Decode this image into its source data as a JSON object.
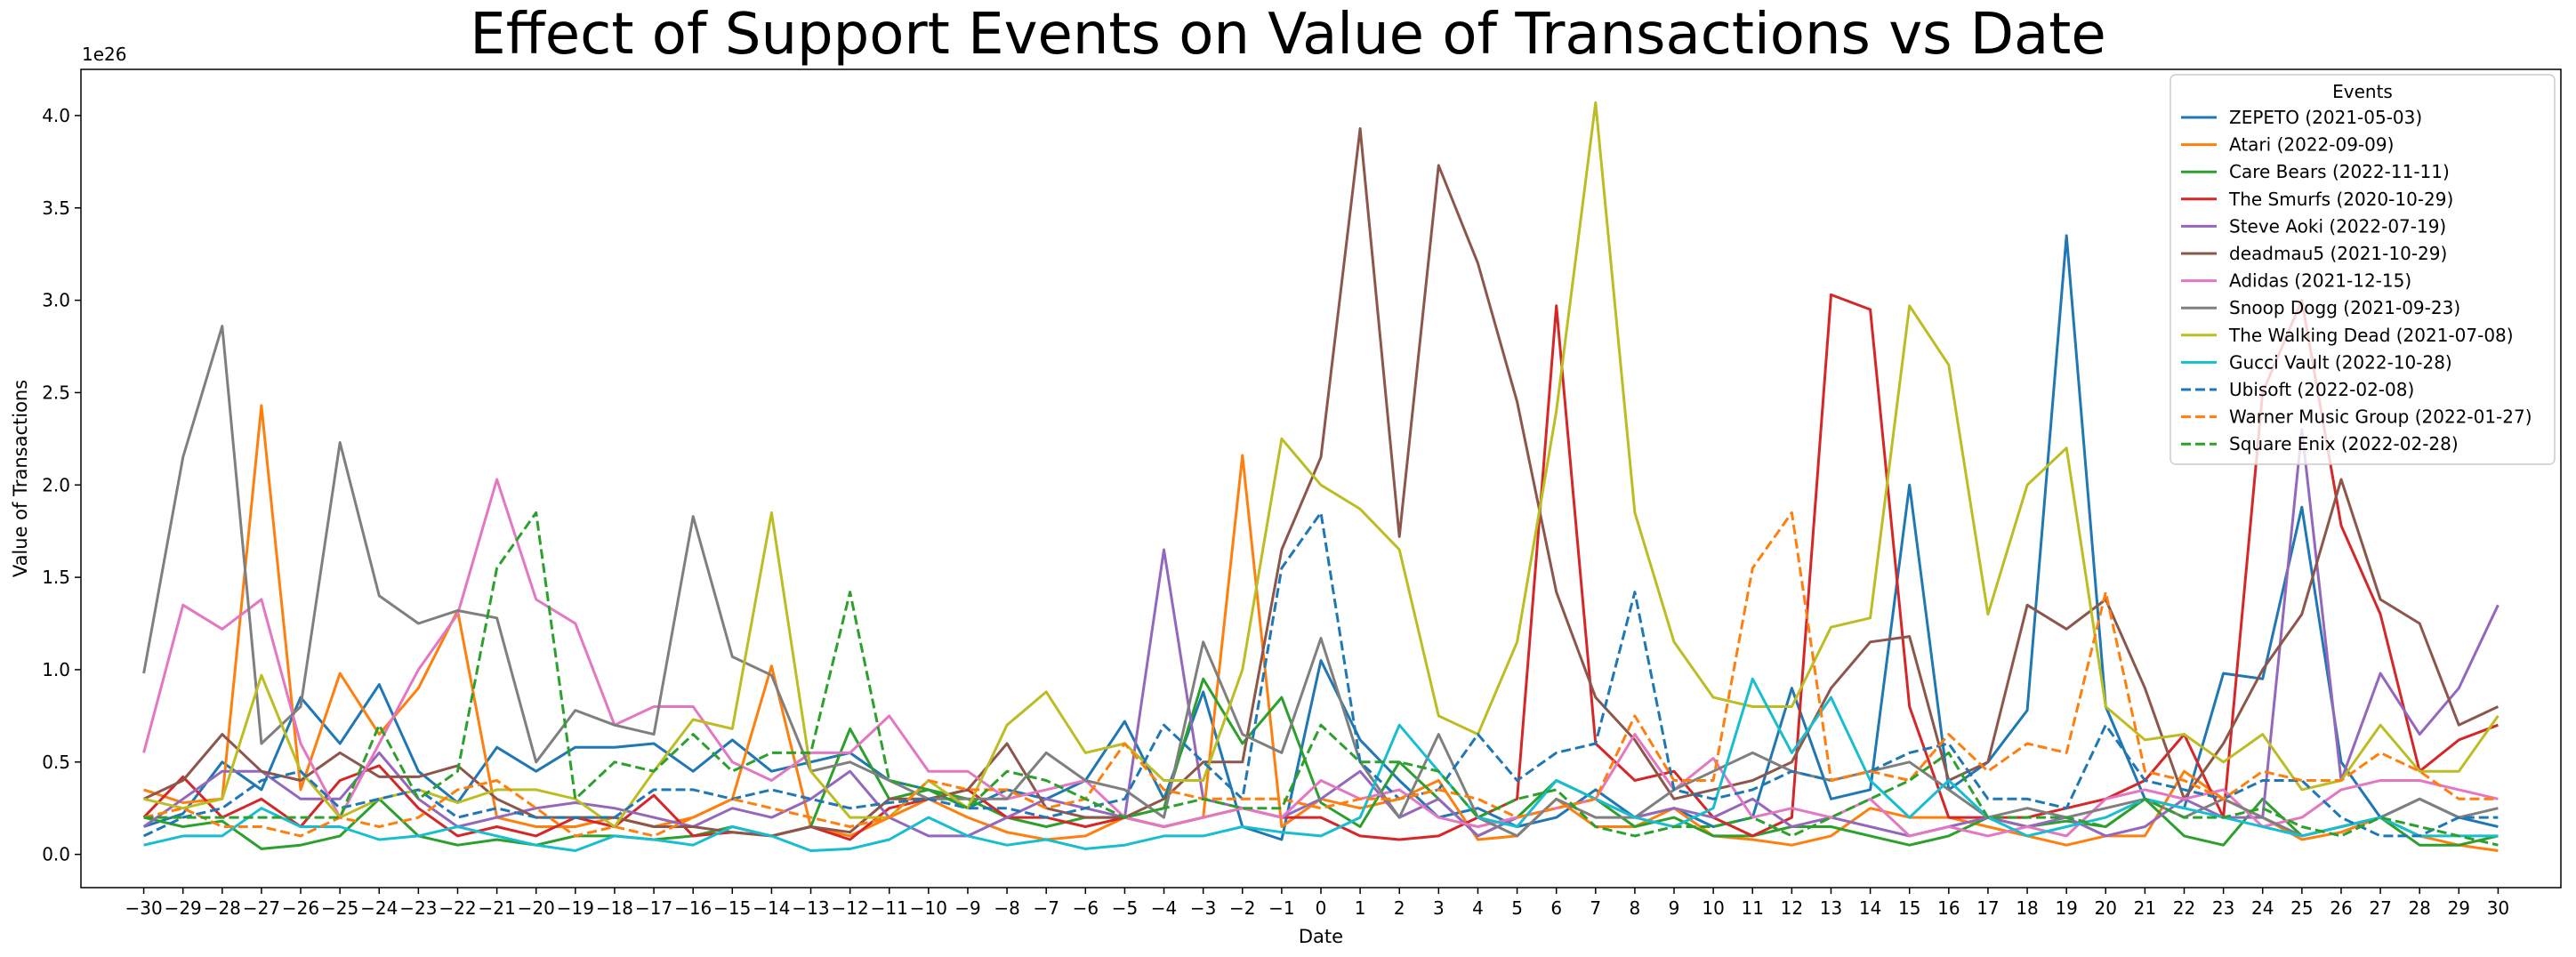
{
  "chart_data": {
    "type": "line",
    "title": "Effect of Support Events on Value of Transactions vs Date",
    "xlabel": "Date",
    "ylabel": "Value of Transactions",
    "y_offset_label": "1e26",
    "y_unit_scale": 1e+26,
    "ylim": [
      -0.18,
      4.25
    ],
    "y_ticks": [
      0.0,
      0.5,
      1.0,
      1.5,
      2.0,
      2.5,
      3.0,
      3.5,
      4.0
    ],
    "y_tick_labels": [
      "0.0",
      "0.5",
      "1.0",
      "1.5",
      "2.0",
      "2.5",
      "3.0",
      "3.5",
      "4.0"
    ],
    "x": [
      -30,
      -29,
      -28,
      -27,
      -26,
      -25,
      -24,
      -23,
      -22,
      -21,
      -20,
      -19,
      -18,
      -17,
      -16,
      -15,
      -14,
      -13,
      -12,
      -11,
      -10,
      -9,
      -8,
      -7,
      -6,
      -5,
      -4,
      -3,
      -2,
      -1,
      0,
      1,
      2,
      3,
      4,
      5,
      6,
      7,
      8,
      9,
      10,
      11,
      12,
      13,
      14,
      15,
      16,
      17,
      18,
      19,
      20,
      21,
      22,
      23,
      24,
      25,
      26,
      27,
      28,
      29,
      30
    ],
    "x_tick_labels": [
      "−30",
      "−29",
      "−28",
      "−27",
      "−26",
      "−25",
      "−24",
      "−23",
      "−22",
      "−21",
      "−20",
      "−19",
      "−18",
      "−17",
      "−16",
      "−15",
      "−14",
      "−13",
      "−12",
      "−11",
      "−10",
      "−9",
      "−8",
      "−7",
      "−6",
      "−5",
      "−4",
      "−3",
      "−2",
      "−1",
      "0",
      "1",
      "2",
      "3",
      "4",
      "5",
      "6",
      "7",
      "8",
      "9",
      "10",
      "11",
      "12",
      "13",
      "14",
      "15",
      "16",
      "17",
      "18",
      "19",
      "20",
      "21",
      "22",
      "23",
      "24",
      "25",
      "26",
      "27",
      "28",
      "29",
      "30"
    ],
    "legend_title": "Events",
    "legend_position": "top-right",
    "grid": false,
    "series": [
      {
        "name": "ZEPETO (2021-05-03)",
        "color": "#1f77b4",
        "dash": "solid",
        "values": [
          0.15,
          0.22,
          0.5,
          0.35,
          0.85,
          0.6,
          0.92,
          0.45,
          0.28,
          0.58,
          0.45,
          0.58,
          0.58,
          0.6,
          0.45,
          0.62,
          0.45,
          0.5,
          0.55,
          0.4,
          0.35,
          0.25,
          0.35,
          0.3,
          0.4,
          0.72,
          0.3,
          0.88,
          0.15,
          0.08,
          1.05,
          0.62,
          0.4,
          0.2,
          0.25,
          0.15,
          0.2,
          0.35,
          0.2,
          0.25,
          0.15,
          0.2,
          0.9,
          0.3,
          0.35,
          2.0,
          0.35,
          0.5,
          0.78,
          3.35,
          0.8,
          0.3,
          0.25,
          0.98,
          0.95,
          1.88,
          0.5,
          0.2,
          0.3,
          0.2,
          0.15
        ]
      },
      {
        "name": "Atari (2022-09-09)",
        "color": "#ff7f0e",
        "dash": "solid",
        "values": [
          0.35,
          0.28,
          0.3,
          2.43,
          0.35,
          0.98,
          0.65,
          0.9,
          1.32,
          0.2,
          0.15,
          0.15,
          0.2,
          0.15,
          0.2,
          0.3,
          1.02,
          0.15,
          0.1,
          0.2,
          0.3,
          0.2,
          0.12,
          0.08,
          0.1,
          0.2,
          0.15,
          0.2,
          2.16,
          0.15,
          0.3,
          0.25,
          0.3,
          0.4,
          0.08,
          0.1,
          0.3,
          0.15,
          0.15,
          0.25,
          0.1,
          0.08,
          0.05,
          0.1,
          0.25,
          0.2,
          0.2,
          0.15,
          0.1,
          0.05,
          0.1,
          0.1,
          0.45,
          0.3,
          0.2,
          0.08,
          0.12,
          0.2,
          0.1,
          0.05,
          0.02
        ]
      },
      {
        "name": "Care Bears (2022-11-11)",
        "color": "#2ca02c",
        "dash": "solid",
        "values": [
          0.2,
          0.15,
          0.18,
          0.03,
          0.05,
          0.1,
          0.3,
          0.1,
          0.05,
          0.08,
          0.05,
          0.1,
          0.1,
          0.08,
          0.1,
          0.15,
          0.1,
          0.15,
          0.68,
          0.3,
          0.35,
          0.3,
          0.2,
          0.15,
          0.2,
          0.2,
          0.25,
          0.95,
          0.6,
          0.85,
          0.28,
          0.15,
          0.5,
          0.3,
          0.1,
          0.2,
          0.4,
          0.3,
          0.15,
          0.2,
          0.1,
          0.1,
          0.15,
          0.15,
          0.1,
          0.05,
          0.1,
          0.2,
          0.15,
          0.18,
          0.15,
          0.3,
          0.1,
          0.05,
          0.3,
          0.1,
          0.15,
          0.2,
          0.05,
          0.05,
          0.1
        ]
      },
      {
        "name": "The Smurfs (2020-10-29)",
        "color": "#d62728",
        "dash": "solid",
        "values": [
          0.2,
          0.42,
          0.2,
          0.3,
          0.15,
          0.4,
          0.48,
          0.25,
          0.1,
          0.15,
          0.1,
          0.2,
          0.15,
          0.32,
          0.1,
          0.12,
          0.1,
          0.15,
          0.08,
          0.25,
          0.3,
          0.35,
          0.2,
          0.2,
          0.15,
          0.2,
          0.15,
          0.2,
          0.25,
          0.2,
          0.2,
          0.1,
          0.08,
          0.1,
          0.2,
          0.3,
          2.97,
          0.6,
          0.4,
          0.45,
          0.2,
          0.1,
          0.2,
          3.03,
          2.95,
          0.8,
          0.2,
          0.2,
          0.2,
          0.25,
          0.3,
          0.4,
          0.65,
          0.2,
          2.5,
          3.0,
          1.78,
          1.3,
          0.45,
          0.62,
          0.7
        ]
      },
      {
        "name": "Steve Aoki (2022-07-19)",
        "color": "#9467bd",
        "dash": "solid",
        "values": [
          0.15,
          0.3,
          0.45,
          0.45,
          0.3,
          0.3,
          0.55,
          0.3,
          0.15,
          0.2,
          0.25,
          0.28,
          0.25,
          0.2,
          0.15,
          0.25,
          0.2,
          0.3,
          0.45,
          0.2,
          0.1,
          0.1,
          0.2,
          0.3,
          0.25,
          0.2,
          1.65,
          0.3,
          0.25,
          0.2,
          0.3,
          0.45,
          0.2,
          0.3,
          0.1,
          0.2,
          0.25,
          0.3,
          0.2,
          0.25,
          0.2,
          0.3,
          0.15,
          0.2,
          0.15,
          0.1,
          0.15,
          0.2,
          0.15,
          0.2,
          0.1,
          0.15,
          0.3,
          0.2,
          0.2,
          2.3,
          0.4,
          0.98,
          0.65,
          0.9,
          1.35
        ]
      },
      {
        "name": "deadmau5 (2021-10-29)",
        "color": "#8c564b",
        "dash": "solid",
        "values": [
          0.3,
          0.4,
          0.65,
          0.45,
          0.4,
          0.55,
          0.42,
          0.42,
          0.48,
          0.3,
          0.2,
          0.2,
          0.2,
          0.15,
          0.15,
          0.12,
          0.1,
          0.15,
          0.12,
          0.3,
          0.3,
          0.35,
          0.6,
          0.25,
          0.2,
          0.2,
          0.3,
          0.5,
          0.5,
          1.65,
          2.15,
          3.93,
          1.72,
          3.73,
          3.2,
          2.45,
          1.42,
          0.85,
          0.62,
          0.3,
          0.35,
          0.4,
          0.5,
          0.9,
          1.15,
          1.18,
          0.4,
          0.5,
          1.35,
          1.22,
          1.38,
          0.9,
          0.3,
          0.6,
          1.0,
          1.3,
          2.03,
          1.38,
          1.25,
          0.7,
          0.8
        ]
      },
      {
        "name": "Adidas (2021-12-15)",
        "color": "#e377c2",
        "dash": "solid",
        "values": [
          0.55,
          1.35,
          1.22,
          1.38,
          0.6,
          0.2,
          0.6,
          1.0,
          1.3,
          2.03,
          1.38,
          1.25,
          0.7,
          0.8,
          0.8,
          0.5,
          0.4,
          0.55,
          0.55,
          0.75,
          0.45,
          0.45,
          0.3,
          0.35,
          0.4,
          0.2,
          0.15,
          0.2,
          0.25,
          0.2,
          0.4,
          0.3,
          0.35,
          0.2,
          0.15,
          0.2,
          0.25,
          0.3,
          0.65,
          0.35,
          0.52,
          0.2,
          0.25,
          0.2,
          0.3,
          0.1,
          0.15,
          0.1,
          0.15,
          0.1,
          0.3,
          0.35,
          0.3,
          0.35,
          0.15,
          0.2,
          0.35,
          0.4,
          0.4,
          0.35,
          0.3
        ]
      },
      {
        "name": "Snoop Dogg (2021-09-23)",
        "color": "#7f7f7f",
        "dash": "solid",
        "values": [
          0.98,
          2.15,
          2.86,
          0.6,
          0.8,
          2.23,
          1.4,
          1.25,
          1.32,
          1.28,
          0.5,
          0.78,
          0.7,
          0.65,
          1.83,
          1.07,
          0.97,
          0.45,
          0.5,
          0.4,
          0.3,
          0.3,
          0.3,
          0.55,
          0.4,
          0.35,
          0.2,
          1.15,
          0.65,
          0.55,
          1.17,
          0.5,
          0.2,
          0.65,
          0.2,
          0.1,
          0.3,
          0.2,
          0.2,
          0.35,
          0.45,
          0.55,
          0.45,
          0.4,
          0.45,
          0.5,
          0.35,
          0.2,
          0.25,
          0.2,
          0.25,
          0.3,
          0.2,
          0.3,
          0.2,
          0.1,
          0.15,
          0.2,
          0.3,
          0.2,
          0.25
        ]
      },
      {
        "name": "The Walking Dead (2021-07-08)",
        "color": "#bcbd22",
        "dash": "solid",
        "values": [
          0.3,
          0.25,
          0.3,
          0.97,
          0.45,
          0.2,
          0.3,
          0.35,
          0.28,
          0.35,
          0.35,
          0.3,
          0.15,
          0.45,
          0.73,
          0.68,
          1.85,
          0.45,
          0.2,
          0.2,
          0.4,
          0.25,
          0.7,
          0.88,
          0.55,
          0.6,
          0.4,
          0.4,
          1.0,
          2.25,
          2.0,
          1.87,
          1.65,
          0.75,
          0.65,
          1.15,
          2.4,
          4.07,
          1.85,
          1.15,
          0.85,
          0.8,
          0.8,
          1.23,
          1.28,
          2.97,
          2.65,
          1.3,
          2.0,
          2.2,
          0.8,
          0.62,
          0.65,
          0.5,
          0.65,
          0.35,
          0.4,
          0.7,
          0.45,
          0.45,
          0.75
        ]
      },
      {
        "name": "Gucci Vault (2022-10-28)",
        "color": "#17becf",
        "dash": "solid",
        "values": [
          0.05,
          0.1,
          0.1,
          0.25,
          0.15,
          0.15,
          0.08,
          0.1,
          0.15,
          0.1,
          0.05,
          0.02,
          0.1,
          0.08,
          0.05,
          0.15,
          0.1,
          0.02,
          0.03,
          0.08,
          0.2,
          0.1,
          0.05,
          0.08,
          0.03,
          0.05,
          0.1,
          0.1,
          0.15,
          0.12,
          0.1,
          0.2,
          0.7,
          0.45,
          0.2,
          0.15,
          0.4,
          0.3,
          0.2,
          0.15,
          0.25,
          0.95,
          0.55,
          0.85,
          0.4,
          0.2,
          0.4,
          0.2,
          0.1,
          0.15,
          0.2,
          0.3,
          0.25,
          0.2,
          0.15,
          0.1,
          0.15,
          0.2,
          0.1,
          0.1,
          0.1
        ]
      },
      {
        "name": "Ubisoft (2022-02-08)",
        "color": "#1f77b4",
        "dash": "dashed",
        "values": [
          0.1,
          0.2,
          0.25,
          0.4,
          0.45,
          0.25,
          0.3,
          0.35,
          0.2,
          0.25,
          0.2,
          0.2,
          0.2,
          0.35,
          0.35,
          0.3,
          0.35,
          0.3,
          0.25,
          0.28,
          0.3,
          0.25,
          0.25,
          0.2,
          0.25,
          0.3,
          0.7,
          0.5,
          0.3,
          1.55,
          1.85,
          0.5,
          0.3,
          0.35,
          0.65,
          0.4,
          0.55,
          0.6,
          1.42,
          0.35,
          0.3,
          0.35,
          0.45,
          0.4,
          0.45,
          0.55,
          0.6,
          0.3,
          0.3,
          0.25,
          0.7,
          0.4,
          0.35,
          0.3,
          0.4,
          0.4,
          0.2,
          0.1,
          0.1,
          0.2,
          0.2
        ]
      },
      {
        "name": "Warner Music Group (2022-01-27)",
        "color": "#ff7f0e",
        "dash": "dashed",
        "values": [
          0.2,
          0.25,
          0.15,
          0.15,
          0.1,
          0.2,
          0.15,
          0.2,
          0.35,
          0.4,
          0.25,
          0.1,
          0.15,
          0.1,
          0.2,
          0.3,
          0.25,
          0.2,
          0.15,
          0.2,
          0.4,
          0.35,
          0.35,
          0.25,
          0.3,
          0.6,
          0.35,
          0.3,
          0.3,
          0.3,
          0.25,
          0.3,
          0.3,
          0.35,
          0.3,
          0.2,
          0.25,
          0.3,
          0.75,
          0.4,
          0.4,
          1.55,
          1.85,
          0.4,
          0.45,
          0.4,
          0.65,
          0.45,
          0.6,
          0.55,
          1.42,
          0.45,
          0.4,
          0.3,
          0.45,
          0.4,
          0.4,
          0.55,
          0.45,
          0.3,
          0.3
        ]
      },
      {
        "name": "Square Enix (2022-02-28)",
        "color": "#2ca02c",
        "dash": "dashed",
        "values": [
          0.2,
          0.2,
          0.2,
          0.2,
          0.2,
          0.2,
          0.7,
          0.3,
          0.45,
          1.55,
          1.85,
          0.3,
          0.5,
          0.45,
          0.65,
          0.45,
          0.55,
          0.55,
          1.42,
          0.4,
          0.35,
          0.25,
          0.45,
          0.4,
          0.3,
          0.2,
          0.25,
          0.3,
          0.25,
          0.25,
          0.7,
          0.5,
          0.5,
          0.45,
          0.2,
          0.3,
          0.35,
          0.15,
          0.1,
          0.15,
          0.15,
          0.2,
          0.1,
          0.2,
          0.3,
          0.4,
          0.55,
          0.2,
          0.2,
          0.2,
          0.15,
          0.3,
          0.2,
          0.2,
          0.25,
          0.15,
          0.1,
          0.2,
          0.15,
          0.1,
          0.05
        ]
      }
    ]
  }
}
